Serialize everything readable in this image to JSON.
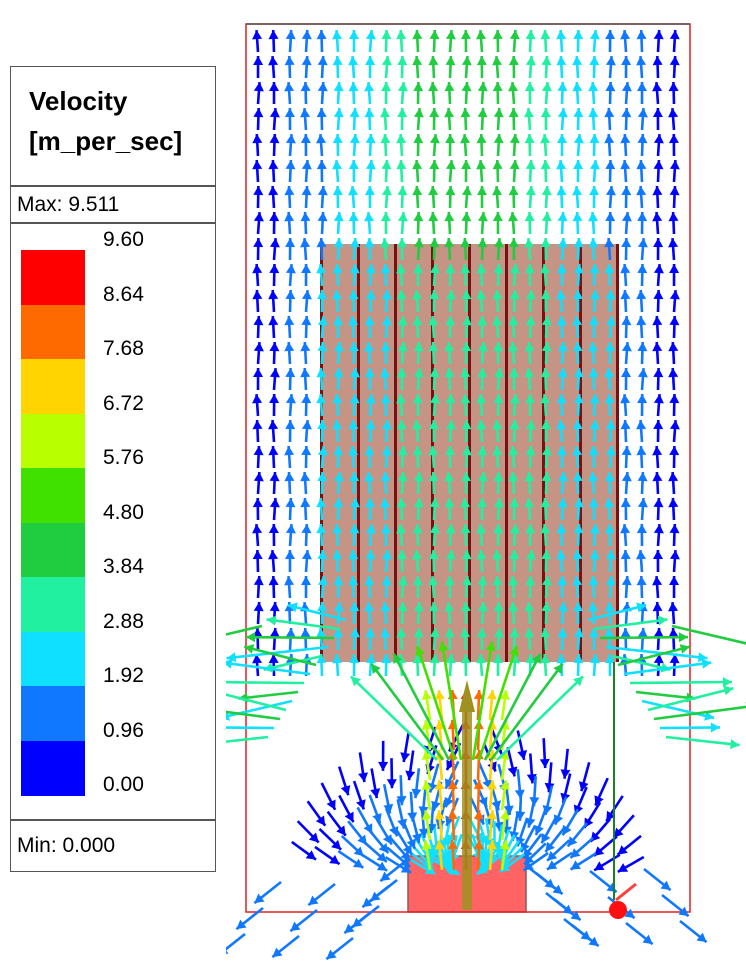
{
  "legend": {
    "title_line1": "Velocity",
    "title_line2": "[m_per_sec]",
    "max_label": "Max: 9.511",
    "min_label": "Min: 0.000",
    "ticks": [
      "9.60",
      "8.64",
      "7.68",
      "6.72",
      "5.76",
      "4.80",
      "3.84",
      "2.88",
      "1.92",
      "0.96",
      "0.00"
    ],
    "band_colors": [
      "#ff0000",
      "#ff6a00",
      "#ffd400",
      "#b8ff00",
      "#40e000",
      "#20cc40",
      "#20f0a0",
      "#10e0ff",
      "#1078ff",
      "#0000ff"
    ]
  },
  "scene": {
    "enclosure_color": "#e02020",
    "block_color": "#c08878",
    "block_stripe_color": "#7a1010",
    "source_color": "#ff3030"
  }
}
